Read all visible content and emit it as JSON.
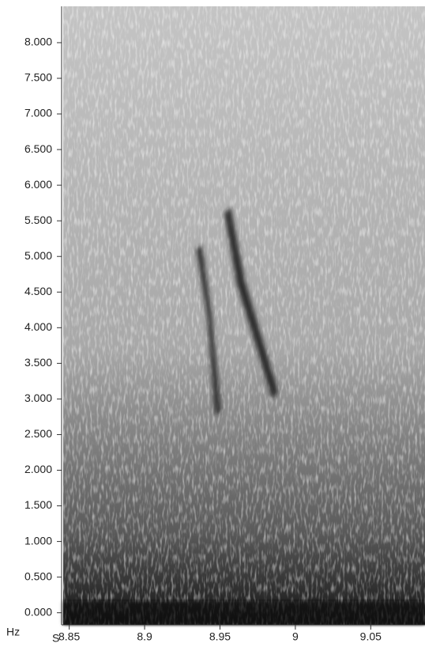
{
  "chart_data": {
    "type": "spectrogram",
    "x_label": "S",
    "y_label": "Hz",
    "xlim": [
      8.846,
      9.086
    ],
    "xticks": [
      8.85,
      8.9,
      8.95,
      9,
      9.05
    ],
    "ylim": [
      -170,
      8510
    ],
    "yticks": [
      {
        "value": 0,
        "label": "0.000"
      },
      {
        "value": 500,
        "label": "0.500"
      },
      {
        "value": 1000,
        "label": "1.000"
      },
      {
        "value": 1500,
        "label": "1.500"
      },
      {
        "value": 2000,
        "label": "2.000"
      },
      {
        "value": 2500,
        "label": "2.500"
      },
      {
        "value": 3000,
        "label": "3.000"
      },
      {
        "value": 3500,
        "label": "3.500"
      },
      {
        "value": 4000,
        "label": "4.000"
      },
      {
        "value": 4500,
        "label": "4.500"
      },
      {
        "value": 5000,
        "label": "5.000"
      },
      {
        "value": 5500,
        "label": "5.500"
      },
      {
        "value": 6000,
        "label": "6.000"
      },
      {
        "value": 6500,
        "label": "6.500"
      },
      {
        "value": 7000,
        "label": "7.000"
      },
      {
        "value": 7500,
        "label": "7.500"
      },
      {
        "value": 8000,
        "label": "8.000"
      }
    ]
  }
}
